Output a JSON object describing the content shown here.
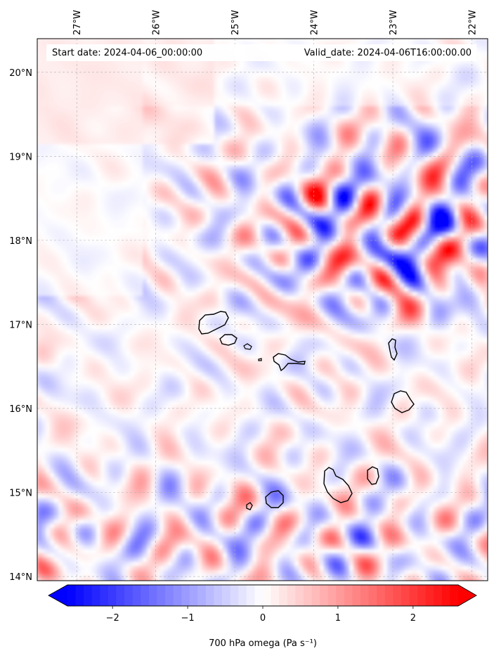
{
  "header": {
    "start_date": "Start date: 2024-04-06_00:00:00",
    "valid_date": "Valid_date: 2024-04-06T16:00:00.00"
  },
  "map": {
    "lon_range": [
      -27.5,
      -21.8
    ],
    "lat_range": [
      13.95,
      20.4
    ],
    "lon_ticks": [
      {
        "value": -27,
        "label": "27°W"
      },
      {
        "value": -26,
        "label": "26°W"
      },
      {
        "value": -25,
        "label": "25°W"
      },
      {
        "value": -24,
        "label": "24°W"
      },
      {
        "value": -23,
        "label": "23°W"
      },
      {
        "value": -22,
        "label": "22°W"
      }
    ],
    "lat_ticks": [
      {
        "value": 20,
        "label": "20°N"
      },
      {
        "value": 19,
        "label": "19°N"
      },
      {
        "value": 18,
        "label": "18°N"
      },
      {
        "value": 17,
        "label": "17°N"
      },
      {
        "value": 16,
        "label": "16°N"
      },
      {
        "value": 15,
        "label": "15°N"
      },
      {
        "value": 14,
        "label": "14°N"
      }
    ],
    "gridlines": true,
    "field": "700 hPa omega",
    "colormap": "bwr",
    "colors": {
      "negative": "#0000ff",
      "neutral": "#ffffff",
      "positive": "#ff0000",
      "coast": "#000000",
      "grid": "#b0b0b0"
    }
  },
  "colorbar": {
    "label": "700 hPa omega (Pa s⁻¹)",
    "range": [
      -2.6,
      2.6
    ],
    "extend": "both",
    "ticks": [
      {
        "value": -2,
        "label": "−2"
      },
      {
        "value": -1,
        "label": "−1"
      },
      {
        "value": 0,
        "label": "0"
      },
      {
        "value": 1,
        "label": "1"
      },
      {
        "value": 2,
        "label": "2"
      }
    ]
  }
}
